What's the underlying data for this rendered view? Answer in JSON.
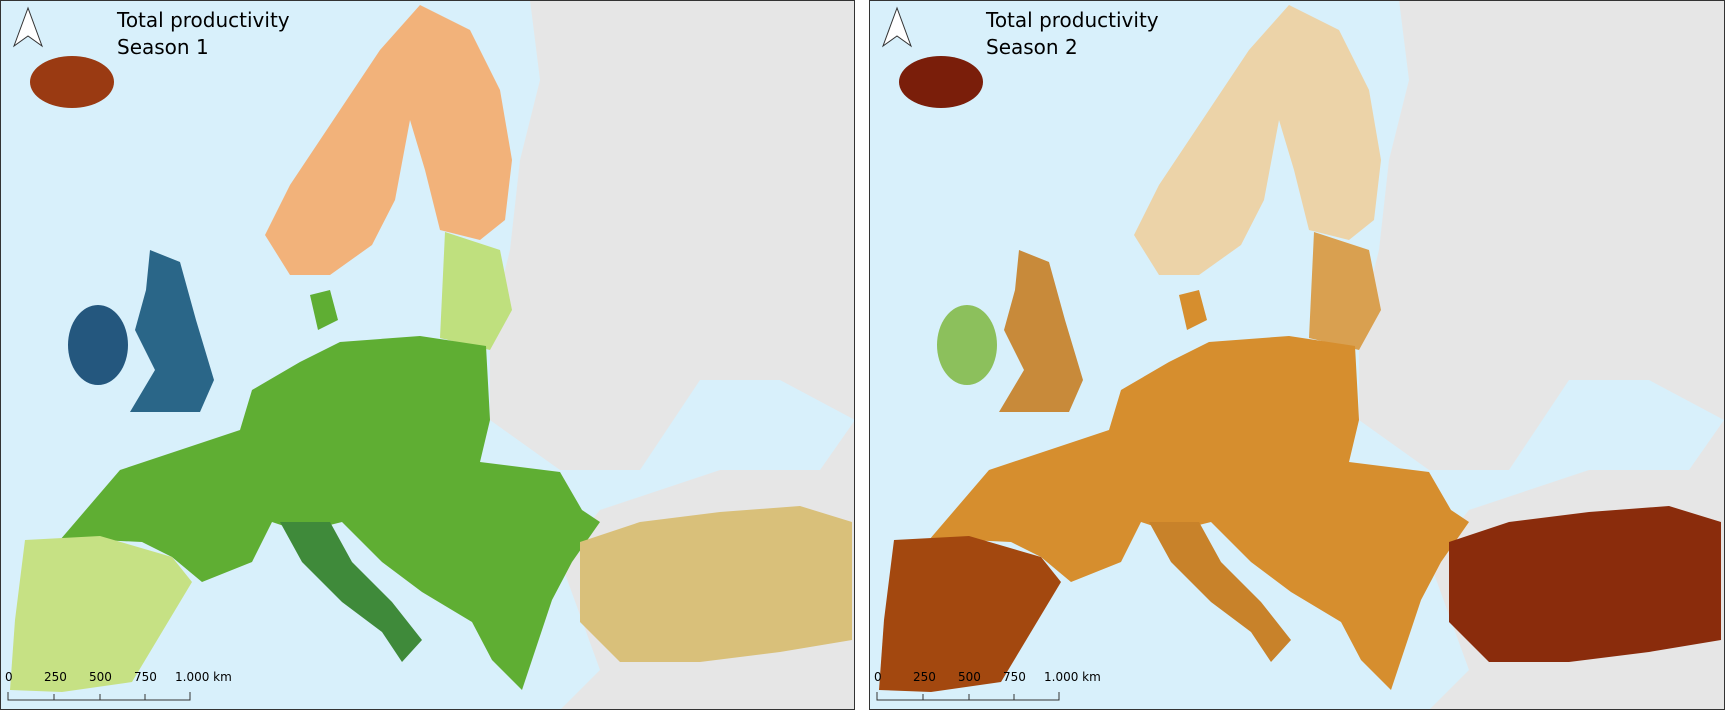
{
  "panels": [
    {
      "title": "Total productivity",
      "subtitle": "Season 1",
      "scale_labels": [
        "0",
        "250",
        "500",
        "750",
        "1.000 km"
      ]
    },
    {
      "title": "Total productivity",
      "subtitle": "Season 2",
      "scale_labels": [
        "0",
        "250",
        "500",
        "750",
        "1.000 km"
      ]
    }
  ]
}
